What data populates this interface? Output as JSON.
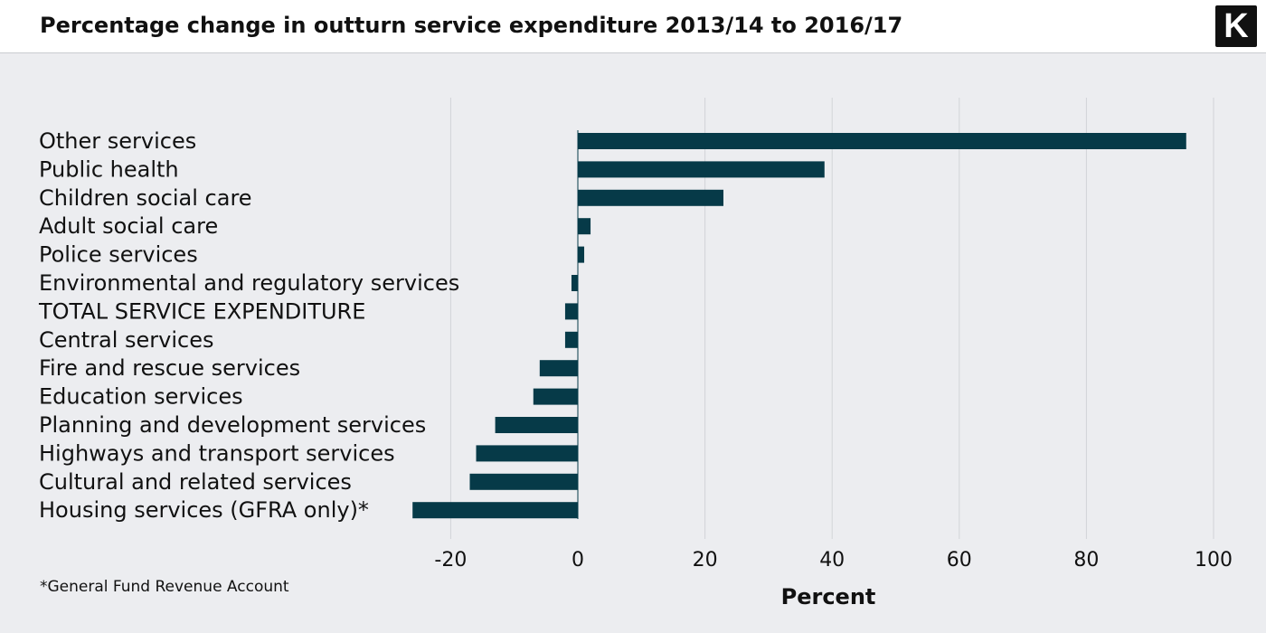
{
  "title": "Percentage change in outturn service expenditure 2013/14 to 2016/17",
  "logo": {
    "letter": "K",
    "icon": "k-logo-icon"
  },
  "footnote": "*General Fund Revenue Account",
  "colors": {
    "bar": "#063a48",
    "grid": "#d2d4d8",
    "background": "#ecedf0",
    "text": "#111111"
  },
  "chart_data": {
    "type": "bar",
    "orientation": "horizontal",
    "title": "Percentage change in outturn service expenditure 2013/14 to 2016/17",
    "xlabel": "Percent",
    "ylabel": "",
    "xlim": [
      -30,
      105
    ],
    "xticks": [
      -20,
      0,
      20,
      40,
      60,
      80,
      100
    ],
    "xtick_labels": [
      "-20",
      "0",
      "20",
      "40",
      "60",
      "80",
      "100"
    ],
    "grid": true,
    "categories": [
      "Other services",
      "Public health",
      "Children social care",
      "Adult social care",
      "Police services",
      "Environmental and regulatory services",
      "TOTAL SERVICE EXPENDITURE",
      "Central services",
      "Fire and rescue services",
      "Education services",
      "Planning and development services",
      "Highways and transport services",
      "Cultural and related services",
      "Housing services (GFRA only)*"
    ],
    "values": [
      95.7,
      38.8,
      22.9,
      2.0,
      1.0,
      -1.0,
      -2.0,
      -2.0,
      -6.0,
      -7.0,
      -13.0,
      -16.0,
      -17.0,
      -26.0
    ]
  }
}
